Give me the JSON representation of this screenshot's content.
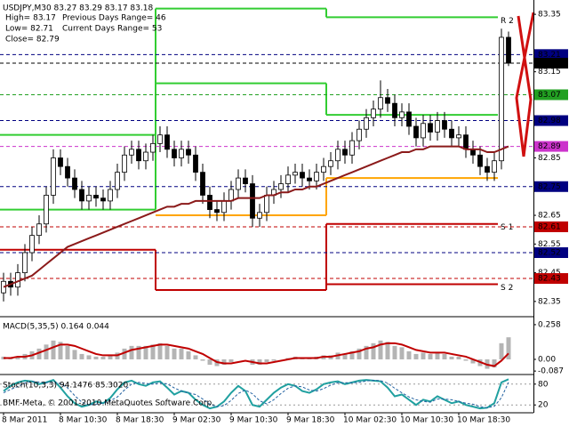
{
  "footer": "BMF-Meta, © 2001-2010 MetaQuotes Software Corp.",
  "chart_data": [
    {
      "type": "candlestick",
      "title": "USDJPY,M30  83.27 83.29 83.17 83.18",
      "info": [
        "High= 83.17",
        "Low= 82.71",
        "Close= 82.79"
      ],
      "ranges": [
        "Previous Days Range= 46",
        "Current Days Range= 53"
      ],
      "categories": [
        "8 Mar 2011",
        null,
        null,
        null,
        null,
        null,
        null,
        null,
        "8 Mar 10:30",
        null,
        null,
        null,
        null,
        null,
        null,
        null,
        "8 Mar 18:30",
        null,
        null,
        null,
        null,
        null,
        null,
        null,
        "9 Mar 02:30",
        null,
        null,
        null,
        null,
        null,
        null,
        null,
        "9 Mar 10:30",
        null,
        null,
        null,
        null,
        null,
        null,
        null,
        "9 Mar 18:30",
        null,
        null,
        null,
        null,
        null,
        null,
        null,
        "10 Mar 02:30",
        null,
        null,
        null,
        null,
        null,
        null,
        null,
        "10 Mar 10:30",
        null,
        null,
        null,
        null,
        null,
        null,
        null,
        "10 Mar 18:30",
        null,
        null,
        null,
        null,
        null,
        null,
        null
      ],
      "open": [
        82.38,
        82.42,
        82.4,
        82.45,
        82.52,
        82.58,
        82.62,
        82.72,
        82.85,
        82.82,
        82.78,
        82.74,
        82.7,
        82.72,
        82.71,
        82.7,
        82.74,
        82.8,
        82.86,
        82.88,
        82.84,
        82.87,
        82.9,
        82.93,
        82.88,
        82.85,
        82.88,
        82.86,
        82.8,
        82.72,
        82.67,
        82.66,
        82.7,
        82.74,
        82.78,
        82.76,
        82.64,
        82.66,
        82.72,
        82.74,
        82.76,
        82.79,
        82.8,
        82.78,
        82.77,
        82.8,
        82.82,
        82.84,
        82.88,
        82.86,
        82.91,
        82.95,
        82.99,
        83.02,
        83.06,
        83.04,
        82.99,
        83.01,
        82.96,
        82.92,
        82.97,
        82.94,
        82.98,
        82.95,
        82.92,
        82.93,
        82.88,
        82.86,
        82.82,
        82.8,
        82.84,
        83.27
      ],
      "high": [
        82.45,
        82.45,
        82.48,
        82.55,
        82.61,
        82.65,
        82.75,
        82.88,
        82.88,
        82.85,
        82.81,
        82.77,
        82.75,
        82.75,
        82.74,
        82.77,
        82.83,
        82.89,
        82.91,
        82.91,
        82.9,
        82.93,
        82.96,
        82.96,
        82.91,
        82.91,
        82.91,
        82.89,
        82.83,
        82.75,
        82.7,
        82.73,
        82.77,
        82.81,
        82.81,
        82.79,
        82.69,
        82.75,
        82.77,
        82.79,
        82.82,
        82.83,
        82.83,
        82.81,
        82.83,
        82.85,
        82.87,
        82.91,
        82.91,
        82.94,
        82.98,
        83.02,
        83.05,
        83.12,
        83.09,
        83.07,
        83.04,
        83.04,
        82.99,
        83.0,
        83.0,
        83.01,
        83.01,
        82.98,
        82.96,
        82.96,
        82.91,
        82.89,
        82.85,
        82.87,
        83.3,
        83.29
      ],
      "low": [
        82.35,
        82.37,
        82.37,
        82.42,
        82.49,
        82.55,
        82.59,
        82.69,
        82.79,
        82.75,
        82.71,
        82.67,
        82.67,
        82.68,
        82.67,
        82.67,
        82.71,
        82.77,
        82.83,
        82.81,
        82.81,
        82.84,
        82.87,
        82.85,
        82.82,
        82.82,
        82.83,
        82.77,
        82.69,
        82.64,
        82.63,
        82.63,
        82.67,
        82.71,
        82.73,
        82.61,
        82.61,
        82.63,
        82.69,
        82.71,
        82.73,
        82.76,
        82.75,
        82.74,
        82.74,
        82.77,
        82.79,
        82.81,
        82.83,
        82.83,
        82.88,
        82.92,
        82.96,
        82.99,
        83.01,
        82.96,
        82.96,
        82.93,
        82.89,
        82.89,
        82.91,
        82.91,
        82.92,
        82.89,
        82.89,
        82.85,
        82.83,
        82.79,
        82.77,
        82.77,
        82.81,
        83.17
      ],
      "close": [
        82.42,
        82.4,
        82.45,
        82.52,
        82.58,
        82.62,
        82.72,
        82.85,
        82.82,
        82.78,
        82.74,
        82.7,
        82.72,
        82.71,
        82.7,
        82.74,
        82.8,
        82.86,
        82.88,
        82.84,
        82.87,
        82.9,
        82.93,
        82.88,
        82.85,
        82.88,
        82.86,
        82.8,
        82.72,
        82.67,
        82.66,
        82.7,
        82.74,
        82.78,
        82.76,
        82.64,
        82.66,
        82.72,
        82.74,
        82.76,
        82.79,
        82.8,
        82.78,
        82.77,
        82.8,
        82.82,
        82.84,
        82.88,
        82.86,
        82.91,
        82.95,
        82.99,
        83.02,
        83.06,
        83.04,
        82.99,
        83.01,
        82.96,
        82.92,
        82.97,
        82.94,
        82.98,
        82.95,
        82.92,
        82.93,
        82.88,
        82.86,
        82.82,
        82.8,
        82.84,
        83.27,
        83.18
      ],
      "up_color": "#ffffff",
      "down_color": "#000000",
      "ma": {
        "color": "#8b1a1a",
        "values": [
          82.4,
          82.41,
          82.42,
          82.43,
          82.44,
          82.46,
          82.48,
          82.5,
          82.52,
          82.54,
          82.55,
          82.56,
          82.57,
          82.58,
          82.59,
          82.6,
          82.61,
          82.62,
          82.63,
          82.64,
          82.65,
          82.66,
          82.67,
          82.68,
          82.68,
          82.69,
          82.69,
          82.7,
          82.7,
          82.7,
          82.7,
          82.7,
          82.7,
          82.71,
          82.71,
          82.71,
          82.71,
          82.72,
          82.72,
          82.73,
          82.73,
          82.74,
          82.74,
          82.75,
          82.75,
          82.76,
          82.77,
          82.78,
          82.79,
          82.8,
          82.81,
          82.82,
          82.83,
          82.84,
          82.85,
          82.86,
          82.87,
          82.87,
          82.88,
          82.88,
          82.89,
          82.89,
          82.89,
          82.89,
          82.89,
          82.88,
          82.88,
          82.88,
          82.87,
          82.87,
          82.88,
          82.89
        ]
      },
      "pivot_levels": [
        {
          "label": "R 2",
          "color": "#32cd32",
          "values": [
            82.93,
            83.37,
            83.34
          ]
        },
        {
          "color": "#32cd32",
          "values": [
            82.67,
            83.11,
            83.0
          ]
        },
        {
          "color": "#ffa500",
          "values": [
            null,
            82.65,
            82.78
          ]
        },
        {
          "label": "S 1",
          "color": "#c00000",
          "values": [
            82.53,
            82.39,
            82.62
          ]
        },
        {
          "label": "S 2",
          "color": "#c00000",
          "values": [
            null,
            null,
            82.41
          ]
        }
      ],
      "ylim": [
        82.3,
        83.4
      ],
      "yticks": [
        82.35,
        82.45,
        82.55,
        82.65,
        82.85,
        83.15,
        83.35
      ],
      "levels": [
        {
          "value": 83.21,
          "color": "#000080"
        },
        {
          "value": 83.18,
          "color": "#000000"
        },
        {
          "value": 83.07,
          "color": "#22a022"
        },
        {
          "value": 82.98,
          "color": "#000080"
        },
        {
          "value": 82.89,
          "color": "#cc33cc"
        },
        {
          "value": 82.75,
          "color": "#000080"
        },
        {
          "value": 82.61,
          "color": "#c00000"
        },
        {
          "value": 82.52,
          "color": "#000080"
        },
        {
          "value": 82.43,
          "color": "#c00000"
        }
      ]
    },
    {
      "type": "macd",
      "title": "MACD(5,35,5) 0.164 0.044",
      "ylim": [
        -0.106,
        0.304
      ],
      "yticks": [
        0.258,
        {
          "value": 0,
          "label": "0.00"
        },
        -0.087
      ],
      "series": [
        {
          "kind": "bar",
          "color": "#b4b4b4",
          "values": [
            0.02,
            0.01,
            0.02,
            0.04,
            0.06,
            0.08,
            0.11,
            0.14,
            0.13,
            0.1,
            0.07,
            0.04,
            0.03,
            0.02,
            0.02,
            0.03,
            0.05,
            0.08,
            0.1,
            0.1,
            0.1,
            0.11,
            0.12,
            0.1,
            0.08,
            0.08,
            0.06,
            0.03,
            -0.01,
            -0.04,
            -0.05,
            -0.04,
            -0.02,
            0.0,
            0.0,
            -0.04,
            -0.04,
            -0.02,
            -0.01,
            0.0,
            0.01,
            0.02,
            0.01,
            0.01,
            0.02,
            0.03,
            0.03,
            0.05,
            0.04,
            0.06,
            0.08,
            0.1,
            0.12,
            0.14,
            0.13,
            0.1,
            0.09,
            0.06,
            0.04,
            0.05,
            0.04,
            0.05,
            0.04,
            0.02,
            0.02,
            -0.01,
            -0.03,
            -0.05,
            -0.07,
            -0.06,
            0.12,
            0.164
          ]
        },
        {
          "kind": "line",
          "color": "#c00000",
          "values": [
            0.01,
            0.01,
            0.02,
            0.02,
            0.03,
            0.05,
            0.07,
            0.09,
            0.11,
            0.11,
            0.1,
            0.08,
            0.06,
            0.04,
            0.03,
            0.03,
            0.03,
            0.05,
            0.07,
            0.08,
            0.09,
            0.1,
            0.11,
            0.11,
            0.1,
            0.09,
            0.08,
            0.06,
            0.04,
            0.01,
            -0.02,
            -0.03,
            -0.03,
            -0.02,
            -0.01,
            -0.02,
            -0.03,
            -0.03,
            -0.02,
            -0.01,
            0.0,
            0.01,
            0.01,
            0.01,
            0.01,
            0.02,
            0.02,
            0.03,
            0.04,
            0.05,
            0.06,
            0.08,
            0.09,
            0.11,
            0.12,
            0.12,
            0.11,
            0.09,
            0.07,
            0.06,
            0.05,
            0.05,
            0.05,
            0.04,
            0.03,
            0.02,
            0.0,
            -0.02,
            -0.04,
            -0.05,
            -0.01,
            0.044
          ]
        }
      ]
    },
    {
      "type": "stoch",
      "title": "Stoch(10,3,3) 94.1476 85.3020",
      "ylim": [
        0,
        100
      ],
      "yticks": [
        20,
        80
      ],
      "series": [
        {
          "kind": "line",
          "color": "#20a0a0",
          "values": [
            60,
            75,
            85,
            90,
            88,
            80,
            85,
            92,
            70,
            45,
            25,
            15,
            20,
            30,
            25,
            40,
            65,
            85,
            90,
            80,
            75,
            85,
            88,
            70,
            50,
            60,
            55,
            35,
            20,
            10,
            15,
            30,
            55,
            75,
            60,
            20,
            15,
            35,
            55,
            70,
            80,
            75,
            60,
            55,
            65,
            80,
            85,
            88,
            80,
            85,
            90,
            92,
            90,
            88,
            70,
            45,
            50,
            35,
            20,
            35,
            30,
            45,
            35,
            25,
            30,
            20,
            15,
            10,
            12,
            25,
            85,
            94.1476
          ]
        },
        {
          "kind": "line",
          "dash": true,
          "color": "#2060a0",
          "values": [
            55,
            65,
            73,
            83,
            88,
            86,
            84,
            86,
            82,
            69,
            47,
            28,
            20,
            22,
            25,
            32,
            43,
            63,
            80,
            85,
            82,
            80,
            83,
            81,
            69,
            60,
            55,
            50,
            37,
            22,
            15,
            18,
            33,
            53,
            63,
            52,
            32,
            23,
            35,
            53,
            68,
            75,
            72,
            63,
            60,
            67,
            77,
            84,
            84,
            84,
            85,
            89,
            91,
            90,
            83,
            68,
            55,
            43,
            35,
            30,
            28,
            37,
            37,
            35,
            30,
            25,
            22,
            15,
            12,
            16,
            41,
            85.302
          ]
        }
      ]
    }
  ]
}
